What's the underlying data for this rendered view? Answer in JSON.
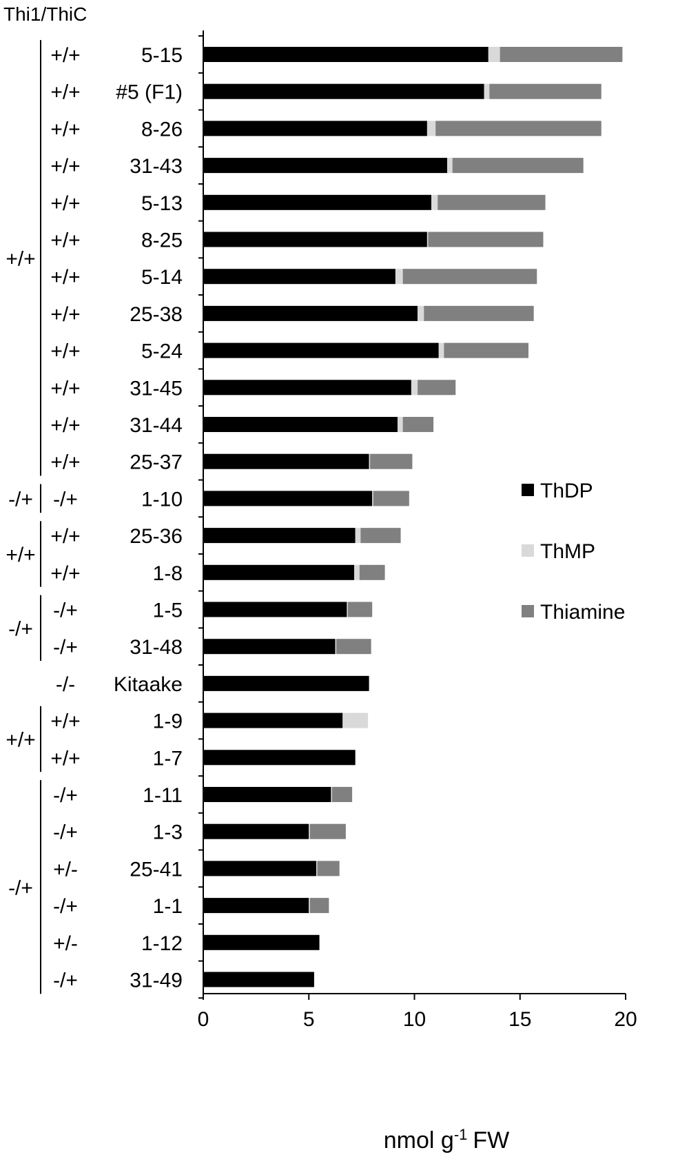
{
  "chart_data": {
    "type": "bar",
    "orientation": "horizontal",
    "stacked": true,
    "title": "",
    "header_label": "Thi1/ThiC",
    "xlabel": "nmol g",
    "xlabel_sup": "-1",
    "xlabel_suffix": "FW",
    "ylabel": "",
    "xlim": [
      0,
      20
    ],
    "xticks": [
      "0",
      "5",
      "10",
      "15",
      "20"
    ],
    "grid": false,
    "legend_position": "right",
    "colors": {
      "ThDP": "#000000",
      "ThMP": "#d9d9d9",
      "Thiamine": "#808080"
    },
    "rows": [
      {
        "name": "5-15",
        "genotype": "+/+",
        "ThDP": 13.5,
        "ThMP": 0.55,
        "Thiamine": 5.8
      },
      {
        "name": "#5 (F1)",
        "genotype": "+/+",
        "ThDP": 13.3,
        "ThMP": 0.25,
        "Thiamine": 5.3
      },
      {
        "name": "8-26",
        "genotype": "+/+",
        "ThDP": 10.6,
        "ThMP": 0.4,
        "Thiamine": 7.85
      },
      {
        "name": "31-43",
        "genotype": "+/+",
        "ThDP": 11.55,
        "ThMP": 0.25,
        "Thiamine": 6.2
      },
      {
        "name": "5-13",
        "genotype": "+/+",
        "ThDP": 10.8,
        "ThMP": 0.3,
        "Thiamine": 5.1
      },
      {
        "name": "8-25",
        "genotype": "+/+",
        "ThDP": 10.6,
        "ThMP": 0.05,
        "Thiamine": 5.45
      },
      {
        "name": "5-14",
        "genotype": "+/+",
        "ThDP": 9.1,
        "ThMP": 0.35,
        "Thiamine": 6.35
      },
      {
        "name": "25-38",
        "genotype": "+/+",
        "ThDP": 10.15,
        "ThMP": 0.3,
        "Thiamine": 5.2
      },
      {
        "name": "5-24",
        "genotype": "+/+",
        "ThDP": 11.15,
        "ThMP": 0.25,
        "Thiamine": 4.0
      },
      {
        "name": "31-45",
        "genotype": "+/+",
        "ThDP": 9.85,
        "ThMP": 0.3,
        "Thiamine": 1.8
      },
      {
        "name": "31-44",
        "genotype": "+/+",
        "ThDP": 9.2,
        "ThMP": 0.25,
        "Thiamine": 1.45
      },
      {
        "name": "25-37",
        "genotype": "+/+",
        "ThDP": 7.85,
        "ThMP": 0.05,
        "Thiamine": 2.0
      },
      {
        "name": "1-10",
        "genotype": "-/+",
        "ThDP": 8.0,
        "ThMP": 0.05,
        "Thiamine": 1.7
      },
      {
        "name": "25-36",
        "genotype": "+/+",
        "ThDP": 7.2,
        "ThMP": 0.25,
        "Thiamine": 1.9
      },
      {
        "name": "1-8",
        "genotype": "+/+",
        "ThDP": 7.15,
        "ThMP": 0.25,
        "Thiamine": 1.2
      },
      {
        "name": "1-5",
        "genotype": "-/+",
        "ThDP": 6.8,
        "ThMP": 0.05,
        "Thiamine": 1.15
      },
      {
        "name": "31-48",
        "genotype": "-/+",
        "ThDP": 6.25,
        "ThMP": 0.05,
        "Thiamine": 1.65
      },
      {
        "name": "Kitaake",
        "genotype": "-/-",
        "ThDP": 7.85,
        "ThMP": 0.0,
        "Thiamine": 0.0
      },
      {
        "name": "1-9",
        "genotype": "+/+",
        "ThDP": 6.6,
        "ThMP": 1.2,
        "Thiamine": 0.0
      },
      {
        "name": "1-7",
        "genotype": "+/+",
        "ThDP": 7.2,
        "ThMP": 0.0,
        "Thiamine": 0.0
      },
      {
        "name": "1-11",
        "genotype": "-/+",
        "ThDP": 6.05,
        "ThMP": 0.05,
        "Thiamine": 0.95
      },
      {
        "name": "1-3",
        "genotype": "-/+",
        "ThDP": 5.0,
        "ThMP": 0.05,
        "Thiamine": 1.7
      },
      {
        "name": "25-41",
        "genotype": "+/-",
        "ThDP": 5.35,
        "ThMP": 0.05,
        "Thiamine": 1.05
      },
      {
        "name": "1-1",
        "genotype": "-/+",
        "ThDP": 5.0,
        "ThMP": 0.05,
        "Thiamine": 0.9
      },
      {
        "name": "1-12",
        "genotype": "+/-",
        "ThDP": 5.5,
        "ThMP": 0.0,
        "Thiamine": 0.0
      },
      {
        "name": "31-49",
        "genotype": "-/+",
        "ThDP": 5.25,
        "ThMP": 0.0,
        "Thiamine": 0.0
      }
    ],
    "groups": [
      {
        "label": "+/+",
        "first_row": 0,
        "last_row": 11
      },
      {
        "label": "-/+",
        "first_row": 12,
        "last_row": 12
      },
      {
        "label": "+/+",
        "first_row": 13,
        "last_row": 14
      },
      {
        "label": "-/+",
        "first_row": 15,
        "last_row": 16
      },
      {
        "label": "+/+",
        "first_row": 18,
        "last_row": 19
      },
      {
        "label": "-/+",
        "first_row": 20,
        "last_row": 25
      }
    ],
    "series": [
      {
        "name": "ThDP"
      },
      {
        "name": "ThMP"
      },
      {
        "name": "Thiamine"
      }
    ]
  }
}
